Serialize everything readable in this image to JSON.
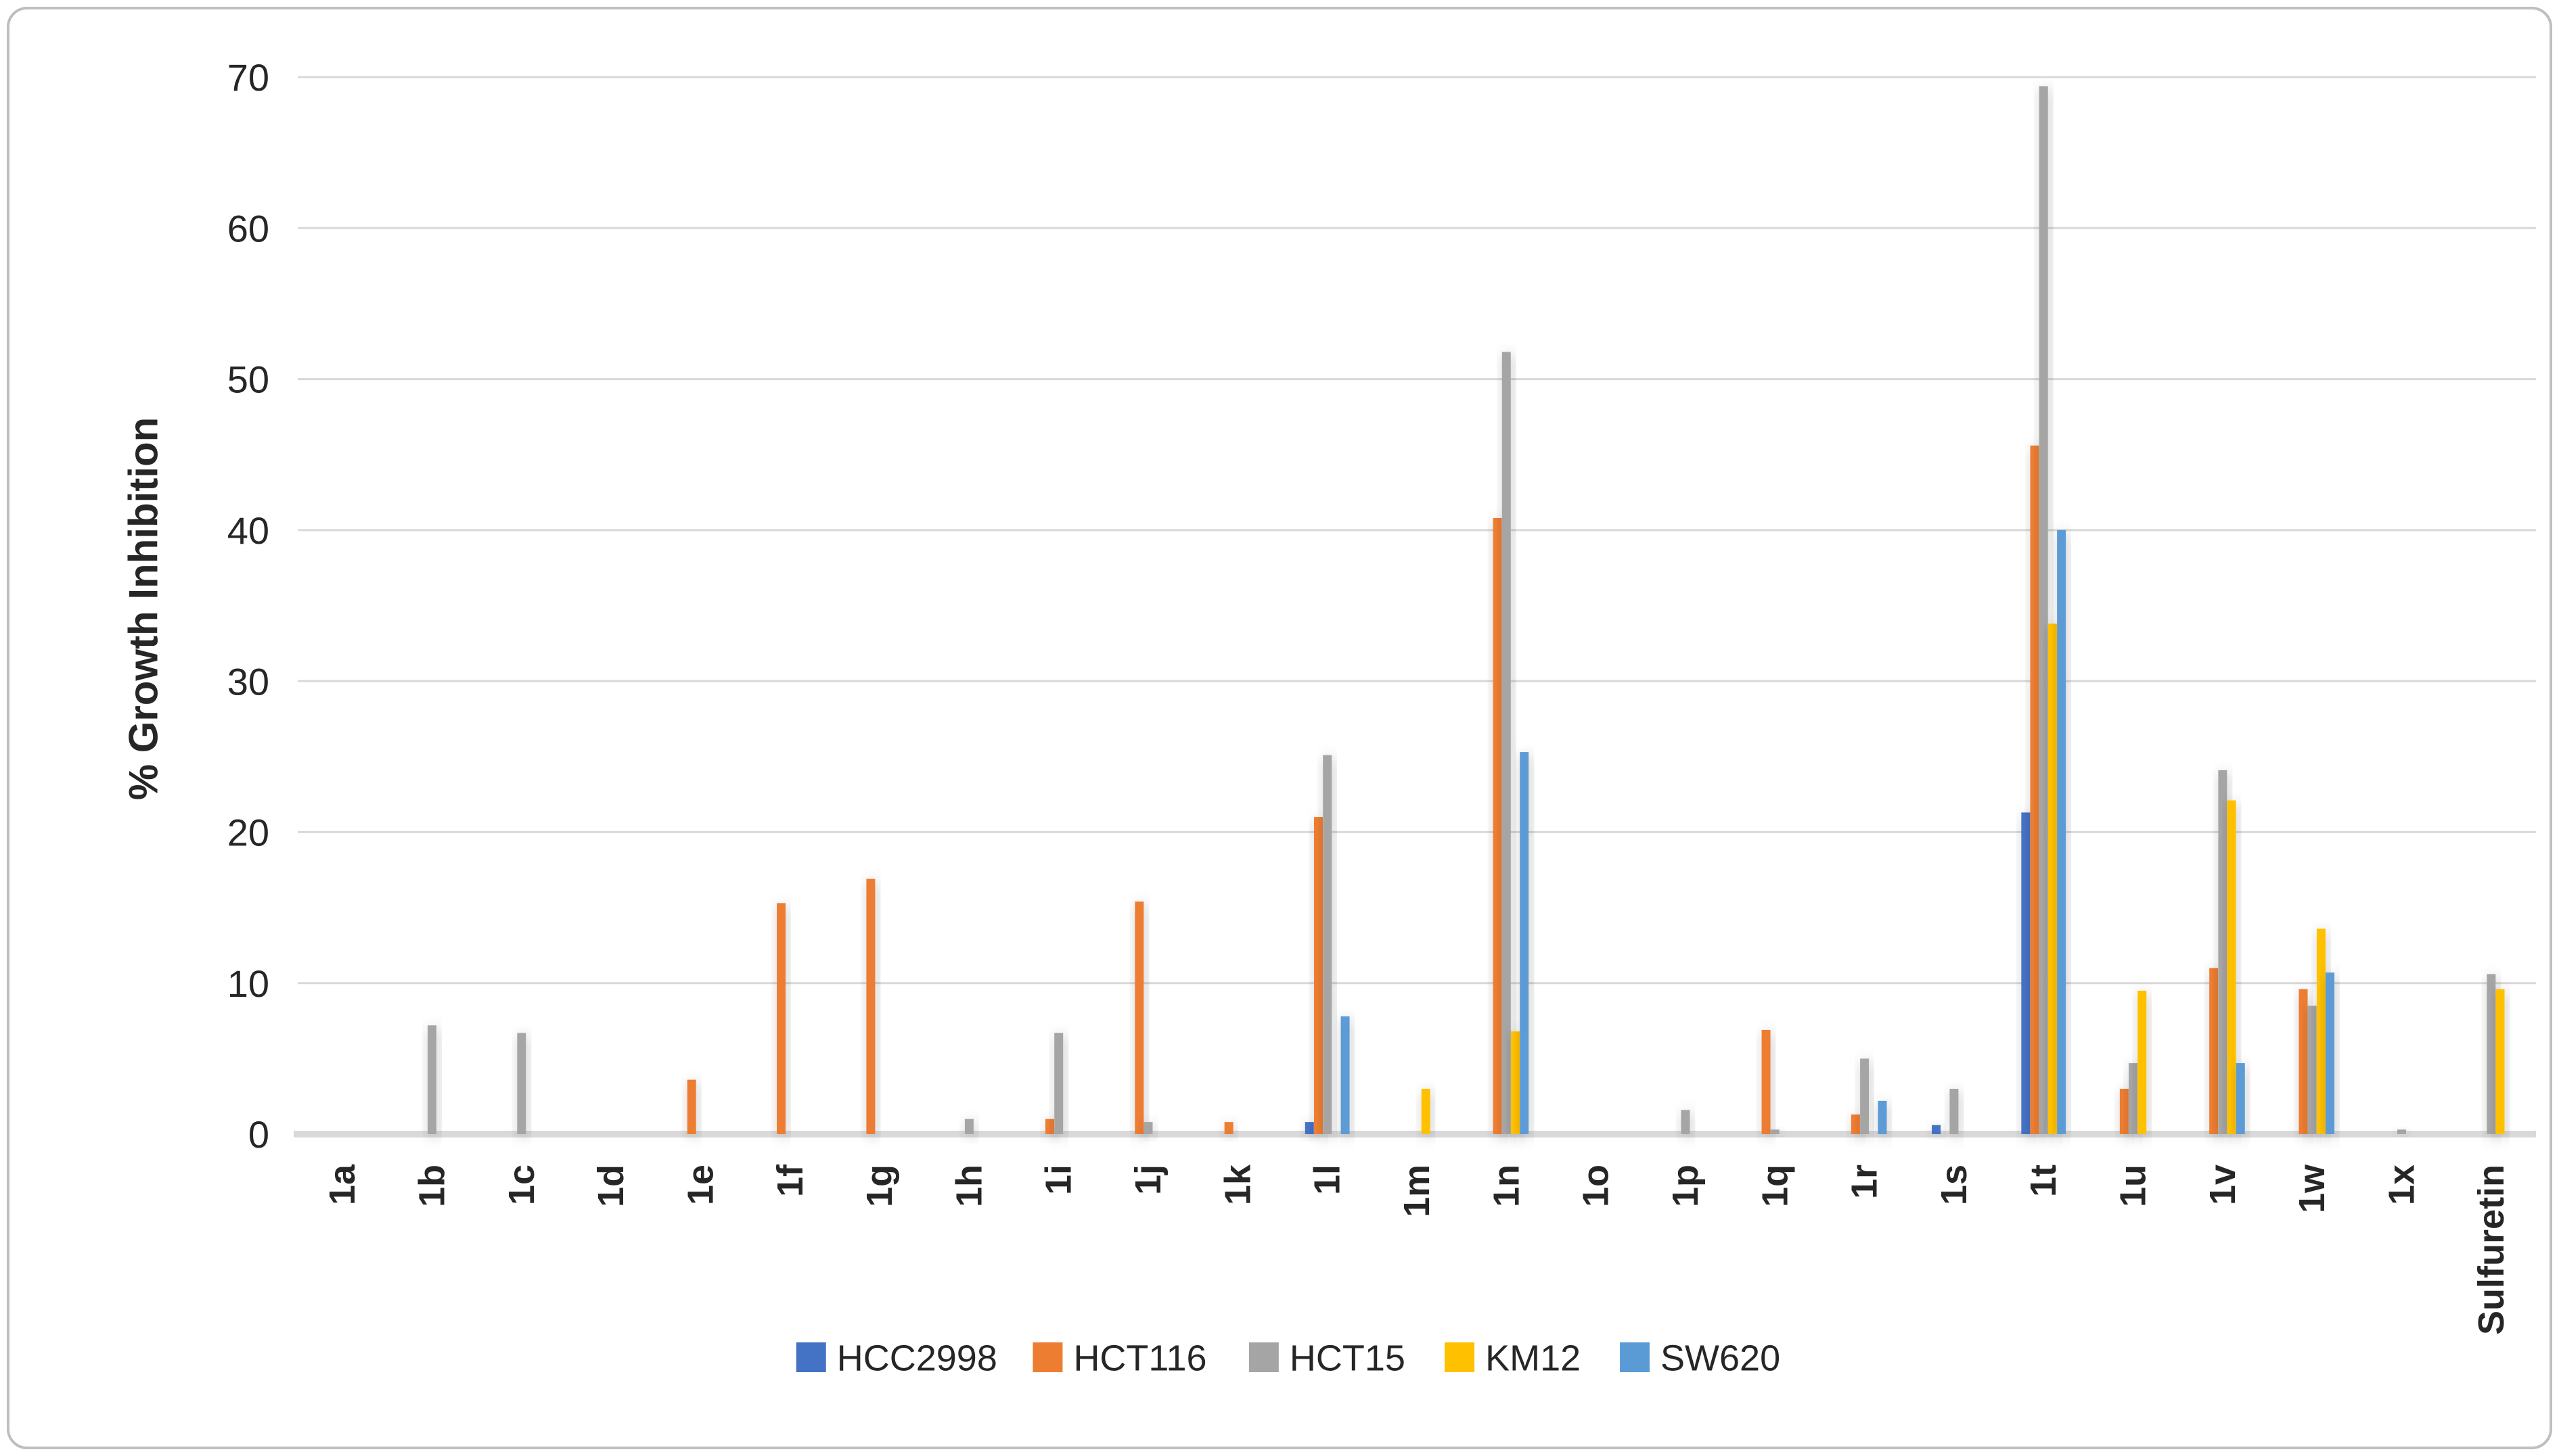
{
  "chart_data": {
    "type": "bar",
    "title": "",
    "xlabel": "",
    "ylabel": "% Growth Inhibition",
    "ylim": [
      0,
      70
    ],
    "yticks": [
      0,
      10,
      20,
      30,
      40,
      50,
      60,
      70
    ],
    "grid": true,
    "legend_position": "bottom",
    "categories": [
      "1a",
      "1b",
      "1c",
      "1d",
      "1e",
      "1f",
      "1g",
      "1h",
      "1i",
      "1j",
      "1k",
      "1l",
      "1m",
      "1n",
      "1o",
      "1p",
      "1q",
      "1r",
      "1s",
      "1t",
      "1u",
      "1v",
      "1w",
      "1x",
      "Sulfuretin"
    ],
    "series": [
      {
        "name": "HCC2998",
        "color": "#4472C4",
        "values": [
          0,
          0,
          0,
          0,
          0,
          0,
          0,
          0,
          0,
          0,
          0,
          0.8,
          0,
          0,
          0,
          0,
          0,
          0,
          0.6,
          21.3,
          0,
          0,
          0,
          0,
          0
        ]
      },
      {
        "name": "HCT116",
        "color": "#ED7D31",
        "values": [
          0,
          0,
          0,
          0,
          3.6,
          15.3,
          16.9,
          0,
          1.0,
          15.4,
          0.8,
          21.0,
          0,
          40.8,
          0,
          0,
          6.9,
          1.3,
          0,
          45.6,
          3.0,
          11.0,
          9.6,
          0,
          0
        ]
      },
      {
        "name": "HCT15",
        "color": "#A5A5A5",
        "values": [
          0,
          7.2,
          6.7,
          0,
          0,
          0,
          0,
          1.0,
          6.7,
          0.8,
          0,
          25.1,
          0,
          51.8,
          0,
          1.6,
          0.3,
          5.0,
          3.0,
          69.4,
          4.7,
          24.1,
          8.5,
          0.3,
          10.6
        ]
      },
      {
        "name": "KM12",
        "color": "#FFC000",
        "values": [
          0,
          0,
          0,
          0,
          0,
          0,
          0,
          0,
          0,
          0,
          0,
          0,
          3.0,
          6.8,
          0,
          0,
          0,
          0,
          0,
          33.8,
          9.5,
          22.1,
          13.6,
          0,
          9.6
        ]
      },
      {
        "name": "SW620",
        "color": "#5B9BD5",
        "values": [
          0,
          0,
          0,
          0,
          0,
          0,
          0,
          0,
          0,
          0,
          0,
          7.8,
          0,
          25.3,
          0,
          0,
          0,
          2.2,
          0,
          40.0,
          0,
          4.7,
          10.7,
          0,
          0
        ]
      }
    ],
    "grid_color": "#D9D9D9",
    "axis_color": "#D9D9D9",
    "text_color": "#262626",
    "border_color": "#BFBFBF",
    "background_color": "#FFFFFF"
  }
}
